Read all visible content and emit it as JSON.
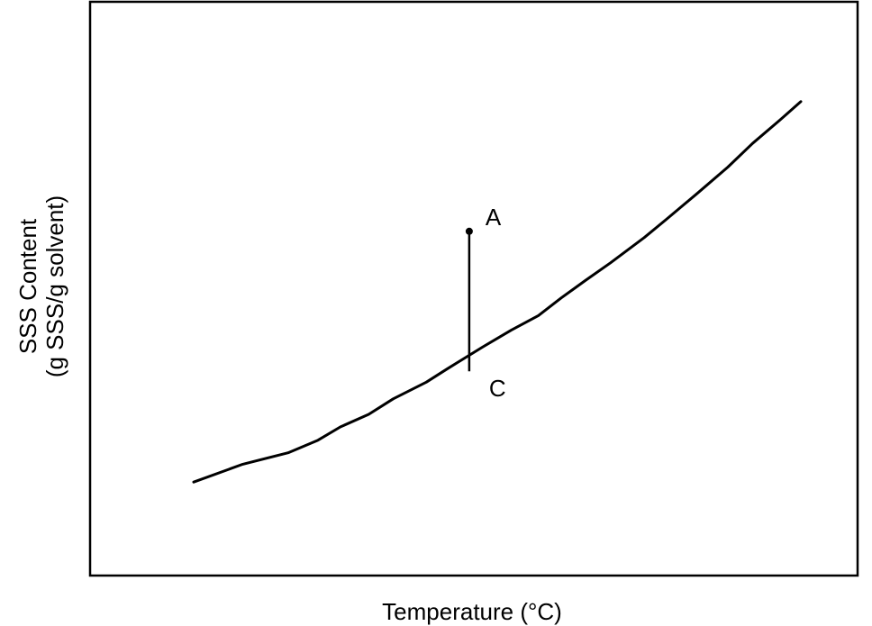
{
  "chart_data": {
    "type": "line",
    "title": "",
    "xlabel": "Temperature (°C)",
    "ylabel_line1": "SSS Content",
    "ylabel_line2": "(g SSS/g solvent)",
    "xlim": [
      0,
      100
    ],
    "ylim": [
      0,
      100
    ],
    "grid": false,
    "legend": "none",
    "series": [
      {
        "values": [
          [
            13.5,
            16.3
          ],
          [
            19.9,
            19.4
          ],
          [
            25.8,
            21.4
          ],
          [
            29.7,
            23.6
          ],
          [
            32.6,
            25.9
          ],
          [
            36.3,
            28.1
          ],
          [
            39.5,
            30.8
          ],
          [
            43.8,
            33.7
          ],
          [
            46.5,
            36.0
          ],
          [
            51.1,
            39.8
          ],
          [
            54.9,
            42.8
          ],
          [
            58.4,
            45.3
          ],
          [
            61.4,
            48.4
          ],
          [
            64.5,
            51.4
          ],
          [
            67.8,
            54.5
          ],
          [
            72.2,
            58.9
          ],
          [
            75.1,
            62.1
          ],
          [
            79.1,
            66.6
          ],
          [
            83.1,
            71.2
          ],
          [
            86.3,
            75.3
          ],
          [
            89.8,
            79.3
          ],
          [
            92.6,
            82.6
          ],
          [
            92.6,
            82.6
          ]
        ]
      }
    ],
    "annotations": [
      {
        "label": "A",
        "x": 49.4,
        "y": 60.0
      },
      {
        "label": "C",
        "x": 49.4,
        "y": 35.6
      }
    ],
    "color": "#000000"
  }
}
